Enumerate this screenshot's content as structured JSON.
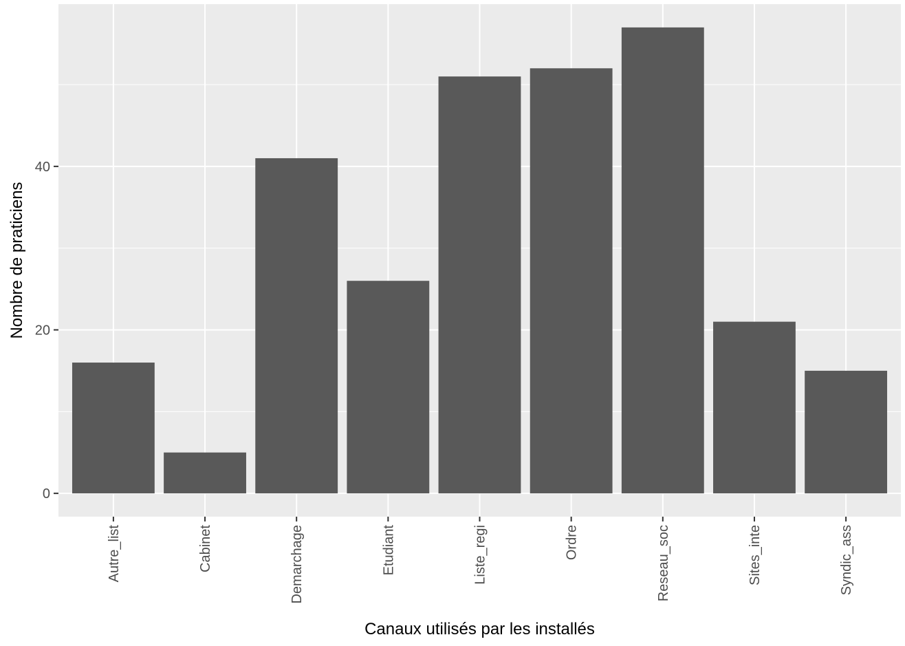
{
  "chart_data": {
    "type": "bar",
    "categories": [
      "Autre_list",
      "Cabinet",
      "Demarchage",
      "Etudiant",
      "Liste_regi",
      "Ordre",
      "Reseau_soc",
      "Sites_inte",
      "Syndic_ass"
    ],
    "values": [
      16,
      5,
      41,
      26,
      51,
      52,
      57,
      21,
      15
    ],
    "xlabel": "Canaux utilisés par les installés",
    "ylabel": "Nombre de praticiens",
    "ylim": [
      -2.85,
      59.85
    ],
    "yticks": [
      0,
      20,
      40
    ],
    "grid": true,
    "bar_color": "#595959",
    "panel_color": "#ebebeb",
    "grid_color": "#ffffff"
  }
}
